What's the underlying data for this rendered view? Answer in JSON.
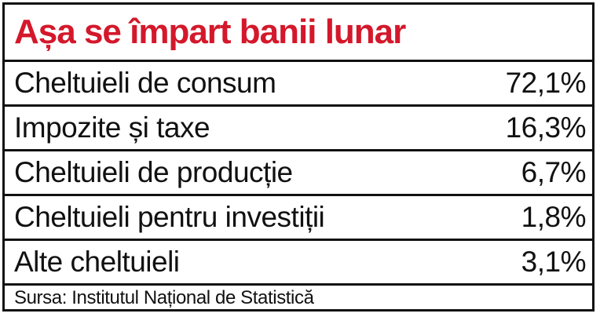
{
  "chart_data": {
    "type": "table",
    "title": "Așa se împart banii lunar",
    "categories": [
      "Cheltuieli de consum",
      "Impozite și taxe",
      "Cheltuieli de producție",
      "Cheltuieli pentru investiții",
      "Alte cheltuieli"
    ],
    "value_labels": [
      "72,1%",
      "16,3%",
      "6,7%",
      "1,8%",
      "3,1%"
    ],
    "values": [
      72.1,
      16.3,
      6.7,
      1.8,
      3.1
    ],
    "unit": "%",
    "source": "Sursa: Institutul Național de Statistică"
  },
  "colors": {
    "title": "#d4182b",
    "text": "#111111",
    "border": "#111111",
    "background": "#ffffff"
  }
}
